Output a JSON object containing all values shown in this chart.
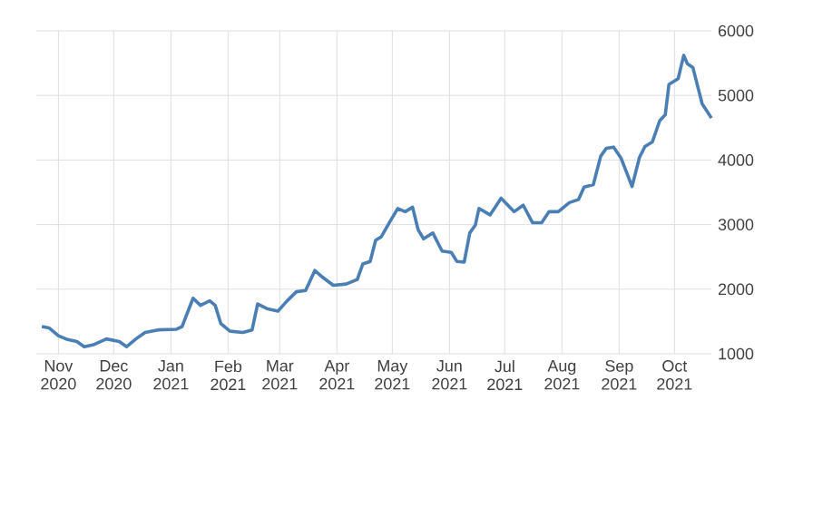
{
  "chart_data": {
    "type": "line",
    "x": [
      "2020-10-23",
      "2020-10-27",
      "2020-11-01",
      "2020-11-06",
      "2020-11-11",
      "2020-11-15",
      "2020-11-20",
      "2020-11-27",
      "2020-12-04",
      "2020-12-08",
      "2020-12-13",
      "2020-12-18",
      "2020-12-25",
      "2021-01-04",
      "2021-01-07",
      "2021-01-13",
      "2021-01-17",
      "2021-01-22",
      "2021-01-25",
      "2021-01-28",
      "2021-02-02",
      "2021-02-09",
      "2021-02-14",
      "2021-02-17",
      "2021-02-22",
      "2021-02-28",
      "2021-03-05",
      "2021-03-10",
      "2021-03-15",
      "2021-03-20",
      "2021-03-24",
      "2021-03-30",
      "2021-04-06",
      "2021-04-12",
      "2021-04-15",
      "2021-04-19",
      "2021-04-22",
      "2021-04-25",
      "2021-04-30",
      "2021-05-04",
      "2021-05-08",
      "2021-05-12",
      "2021-05-15",
      "2021-05-18",
      "2021-05-23",
      "2021-05-28",
      "2021-06-02",
      "2021-06-05",
      "2021-06-09",
      "2021-06-12",
      "2021-06-15",
      "2021-06-17",
      "2021-06-23",
      "2021-06-29",
      "2021-07-06",
      "2021-07-11",
      "2021-07-16",
      "2021-07-21",
      "2021-07-25",
      "2021-07-30",
      "2021-08-05",
      "2021-08-10",
      "2021-08-13",
      "2021-08-18",
      "2021-08-22",
      "2021-08-25",
      "2021-08-29",
      "2021-09-02",
      "2021-09-05",
      "2021-09-08",
      "2021-09-12",
      "2021-09-15",
      "2021-09-19",
      "2021-09-23",
      "2021-09-26",
      "2021-09-28",
      "2021-10-03",
      "2021-10-06",
      "2021-10-08",
      "2021-10-11",
      "2021-10-16",
      "2021-10-19",
      "2021-10-21"
    ],
    "series": [
      {
        "color": "#4a7fb5",
        "values": [
          1420,
          1400,
          1280,
          1220,
          1190,
          1110,
          1140,
          1230,
          1190,
          1110,
          1230,
          1330,
          1370,
          1380,
          1420,
          1860,
          1750,
          1820,
          1750,
          1470,
          1350,
          1330,
          1370,
          1770,
          1700,
          1660,
          1820,
          1960,
          1980,
          2290,
          2190,
          2060,
          2080,
          2150,
          2390,
          2430,
          2760,
          2810,
          3060,
          3250,
          3200,
          3270,
          2920,
          2780,
          2870,
          2590,
          2570,
          2430,
          2420,
          2870,
          2990,
          3250,
          3150,
          3410,
          3200,
          3300,
          3030,
          3030,
          3200,
          3200,
          3340,
          3390,
          3580,
          3620,
          4060,
          4180,
          4200,
          4030,
          3810,
          3590,
          4040,
          4210,
          4280,
          4610,
          4700,
          5170,
          5260,
          5620,
          5490,
          5430,
          4870,
          4740,
          4650
        ]
      }
    ],
    "xlim": [
      "2020-10-20",
      "2021-10-21"
    ],
    "xticks": [
      {
        "value": "2020-11-01",
        "label": "Nov 2020"
      },
      {
        "value": "2020-12-01",
        "label": "Dec 2020"
      },
      {
        "value": "2021-01-01",
        "label": "Jan 2021"
      },
      {
        "value": "2021-02-01",
        "label": "Feb 2021"
      },
      {
        "value": "2021-03-01",
        "label": "Mar 2021"
      },
      {
        "value": "2021-04-01",
        "label": "Apr 2021"
      },
      {
        "value": "2021-05-01",
        "label": "May 2021"
      },
      {
        "value": "2021-06-01",
        "label": "Jun 2021"
      },
      {
        "value": "2021-07-01",
        "label": "Jul 2021"
      },
      {
        "value": "2021-08-01",
        "label": "Aug 2021"
      },
      {
        "value": "2021-09-01",
        "label": "Sep 2021"
      },
      {
        "value": "2021-10-01",
        "label": "Oct 2021"
      }
    ],
    "ylim": [
      1000,
      6000
    ],
    "yticks": [
      1000,
      2000,
      3000,
      4000,
      5000,
      6000
    ],
    "grid": true
  }
}
